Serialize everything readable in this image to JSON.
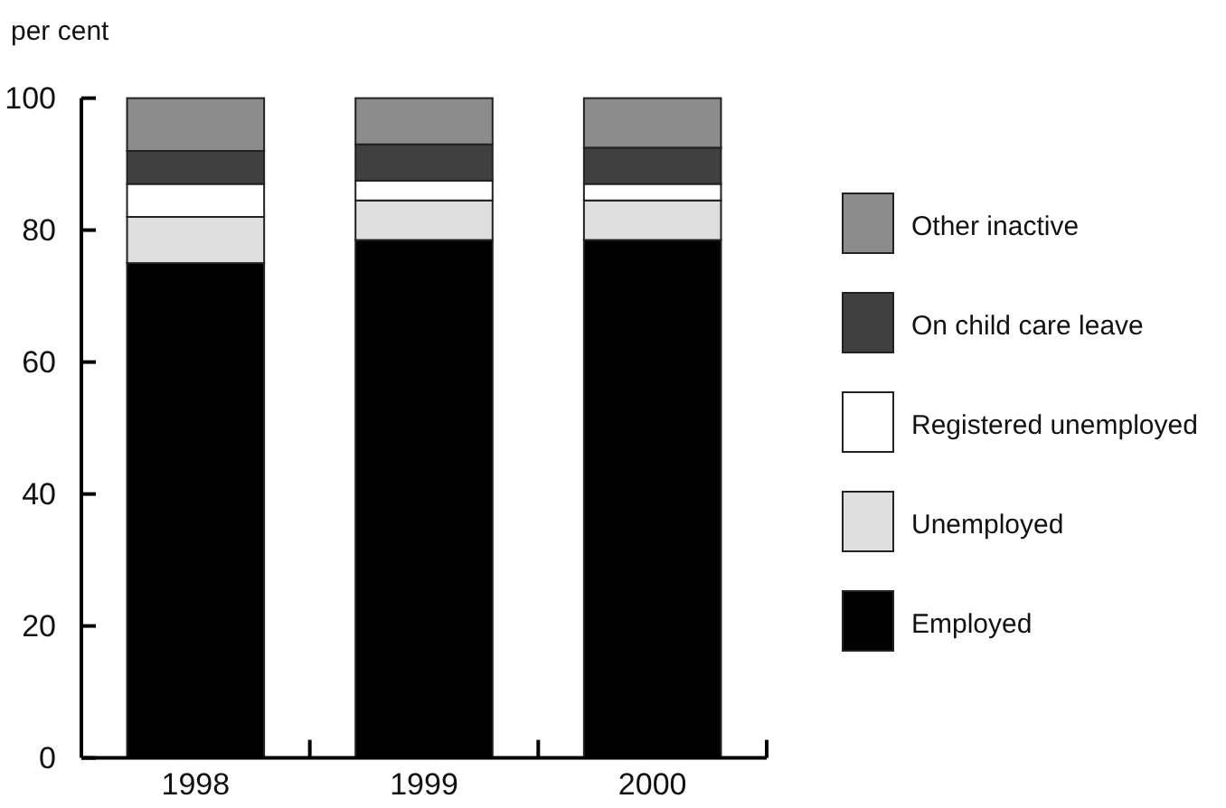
{
  "chart_data": {
    "type": "bar",
    "stacked": true,
    "ylabel": "per cent",
    "categories": [
      "1998",
      "1999",
      "2000"
    ],
    "series": [
      {
        "name": "Employed",
        "color": "#000000",
        "values": [
          75,
          78.5,
          78.5
        ]
      },
      {
        "name": "Unemployed",
        "color": "#dedede",
        "values": [
          7,
          6,
          6
        ]
      },
      {
        "name": "Registered unemployed",
        "color": "#ffffff",
        "values": [
          5,
          3,
          2.5
        ]
      },
      {
        "name": "On child care leave",
        "color": "#404040",
        "values": [
          5,
          5.5,
          5.5
        ]
      },
      {
        "name": "Other inactive",
        "color": "#8c8c8c",
        "values": [
          8,
          7,
          7.5
        ]
      }
    ],
    "ylim": [
      0,
      100
    ],
    "yticks": [
      0,
      20,
      40,
      60,
      80,
      100
    ],
    "grid": false,
    "legend": "right"
  }
}
